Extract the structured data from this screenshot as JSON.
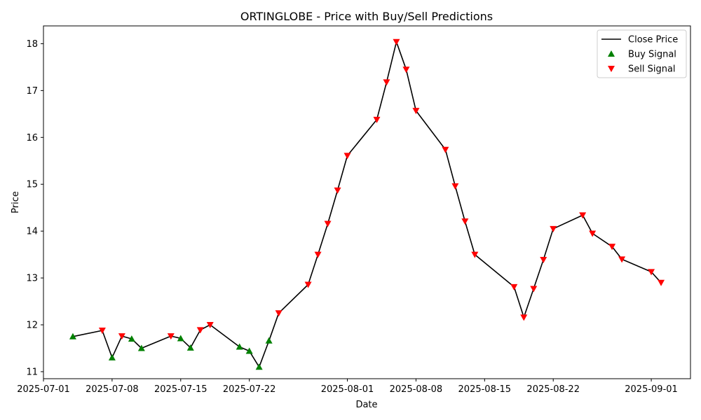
{
  "chart_data": {
    "type": "line",
    "title": "ORTINGLOBE - Price with Buy/Sell Predictions",
    "xlabel": "Date",
    "ylabel": "Price",
    "xlim": [
      "2025-07-01",
      "2025-09-05"
    ],
    "ylim": [
      10.85,
      18.38
    ],
    "x_ticks": [
      {
        "date": "2025-07-01",
        "label": "2025-07-01"
      },
      {
        "date": "2025-07-08",
        "label": "2025-07-08"
      },
      {
        "date": "2025-07-15",
        "label": "2025-07-15"
      },
      {
        "date": "2025-07-22",
        "label": "2025-07-22"
      },
      {
        "date": "2025-08-01",
        "label": "2025-08-01"
      },
      {
        "date": "2025-08-08",
        "label": "2025-08-08"
      },
      {
        "date": "2025-08-15",
        "label": "2025-08-15"
      },
      {
        "date": "2025-08-22",
        "label": "2025-08-22"
      },
      {
        "date": "2025-09-01",
        "label": "2025-09-01"
      }
    ],
    "y_ticks": [
      11,
      12,
      13,
      14,
      15,
      16,
      17,
      18
    ],
    "grid": false,
    "legend": {
      "position": "top-right",
      "entries": [
        {
          "key": "close",
          "label": "Close Price",
          "color": "#000000",
          "marker": "line"
        },
        {
          "key": "buy",
          "label": "Buy Signal",
          "color": "#008000",
          "marker": "triangle-up"
        },
        {
          "key": "sell",
          "label": "Sell Signal",
          "color": "#ff0000",
          "marker": "triangle-down"
        }
      ]
    },
    "series": [
      {
        "key": "close",
        "name": "Close Price",
        "color": "#000000",
        "points": [
          {
            "x": "2025-07-04",
            "y": 11.75,
            "signal": "buy"
          },
          {
            "x": "2025-07-07",
            "y": 11.88,
            "signal": "sell"
          },
          {
            "x": "2025-07-08",
            "y": 11.3,
            "signal": "buy"
          },
          {
            "x": "2025-07-09",
            "y": 11.76,
            "signal": "sell"
          },
          {
            "x": "2025-07-10",
            "y": 11.7,
            "signal": "buy"
          },
          {
            "x": "2025-07-11",
            "y": 11.5,
            "signal": "buy"
          },
          {
            "x": "2025-07-14",
            "y": 11.76,
            "signal": "sell"
          },
          {
            "x": "2025-07-15",
            "y": 11.71,
            "signal": "buy"
          },
          {
            "x": "2025-07-16",
            "y": 11.51,
            "signal": "buy"
          },
          {
            "x": "2025-07-17",
            "y": 11.89,
            "signal": "sell"
          },
          {
            "x": "2025-07-18",
            "y": 12.0,
            "signal": "sell"
          },
          {
            "x": "2025-07-21",
            "y": 11.53,
            "signal": "buy"
          },
          {
            "x": "2025-07-22",
            "y": 11.44,
            "signal": "buy"
          },
          {
            "x": "2025-07-23",
            "y": 11.1,
            "signal": "buy"
          },
          {
            "x": "2025-07-24",
            "y": 11.66,
            "signal": "buy"
          },
          {
            "x": "2025-07-25",
            "y": 12.25,
            "signal": "sell"
          },
          {
            "x": "2025-07-28",
            "y": 12.86,
            "signal": "sell"
          },
          {
            "x": "2025-07-29",
            "y": 13.5,
            "signal": "sell"
          },
          {
            "x": "2025-07-30",
            "y": 14.16,
            "signal": "sell"
          },
          {
            "x": "2025-07-31",
            "y": 14.87,
            "signal": "sell"
          },
          {
            "x": "2025-08-01",
            "y": 15.61,
            "signal": "sell"
          },
          {
            "x": "2025-08-04",
            "y": 16.38,
            "signal": "sell"
          },
          {
            "x": "2025-08-05",
            "y": 17.18,
            "signal": "sell"
          },
          {
            "x": "2025-08-06",
            "y": 18.04,
            "signal": "sell"
          },
          {
            "x": "2025-08-07",
            "y": 17.45,
            "signal": "sell"
          },
          {
            "x": "2025-08-08",
            "y": 16.57,
            "signal": "sell"
          },
          {
            "x": "2025-08-11",
            "y": 15.74,
            "signal": "sell"
          },
          {
            "x": "2025-08-12",
            "y": 14.96,
            "signal": "sell"
          },
          {
            "x": "2025-08-13",
            "y": 14.21,
            "signal": "sell"
          },
          {
            "x": "2025-08-14",
            "y": 13.5,
            "signal": "sell"
          },
          {
            "x": "2025-08-18",
            "y": 12.81,
            "signal": "sell"
          },
          {
            "x": "2025-08-19",
            "y": 12.16,
            "signal": "sell"
          },
          {
            "x": "2025-08-20",
            "y": 12.77,
            "signal": "sell"
          },
          {
            "x": "2025-08-21",
            "y": 13.39,
            "signal": "sell"
          },
          {
            "x": "2025-08-22",
            "y": 14.05,
            "signal": "sell"
          },
          {
            "x": "2025-08-25",
            "y": 14.34,
            "signal": "sell"
          },
          {
            "x": "2025-08-26",
            "y": 13.95,
            "signal": "sell"
          },
          {
            "x": "2025-08-28",
            "y": 13.67,
            "signal": "sell"
          },
          {
            "x": "2025-08-29",
            "y": 13.4,
            "signal": "sell"
          },
          {
            "x": "2025-09-01",
            "y": 13.13,
            "signal": "sell"
          },
          {
            "x": "2025-09-02",
            "y": 12.9,
            "signal": "sell"
          }
        ]
      }
    ]
  }
}
